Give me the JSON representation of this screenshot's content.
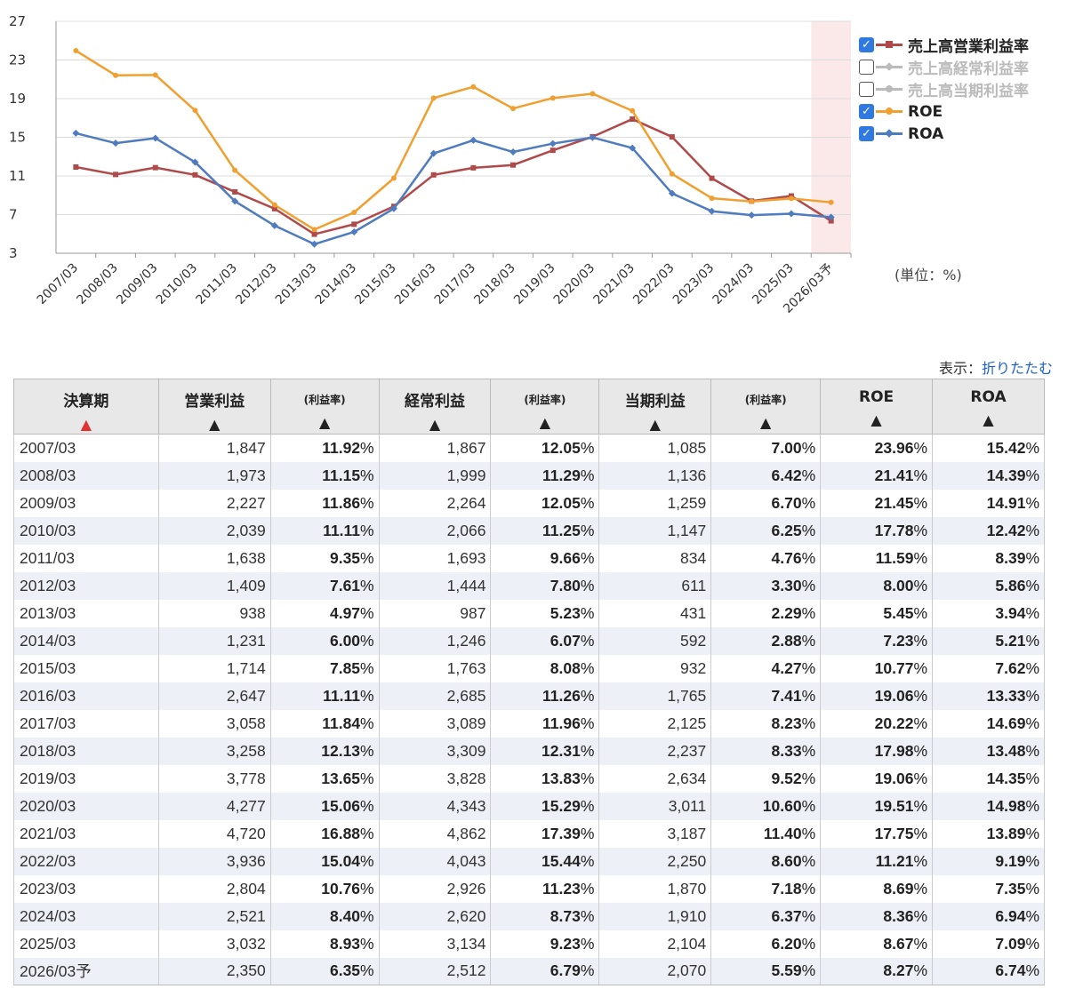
{
  "chart_data": {
    "type": "line",
    "categories": [
      "2007/03",
      "2008/03",
      "2009/03",
      "2010/03",
      "2011/03",
      "2012/03",
      "2013/03",
      "2014/03",
      "2015/03",
      "2016/03",
      "2017/03",
      "2018/03",
      "2019/03",
      "2020/03",
      "2021/03",
      "2022/03",
      "2023/03",
      "2024/03",
      "2025/03",
      "2026/03予"
    ],
    "ylim": [
      3,
      27
    ],
    "yticks": [
      3,
      7,
      11,
      15,
      19,
      23,
      27
    ],
    "forecast_band": "2026/03予",
    "series": [
      {
        "name": "売上高営業利益率",
        "color": "#b04a4a",
        "marker": "square",
        "visible": true,
        "values": [
          11.92,
          11.15,
          11.86,
          11.11,
          9.35,
          7.61,
          4.97,
          6.0,
          7.85,
          11.11,
          11.84,
          12.13,
          13.65,
          15.06,
          16.88,
          15.04,
          10.76,
          8.4,
          8.93,
          6.35
        ]
      },
      {
        "name": "売上高経常利益率",
        "color": "#bbbbbb",
        "marker": "diamond",
        "visible": false,
        "values": [
          12.05,
          11.29,
          12.05,
          11.25,
          9.66,
          7.8,
          5.23,
          6.07,
          8.08,
          11.26,
          11.96,
          12.31,
          13.83,
          15.29,
          17.39,
          15.44,
          11.23,
          8.73,
          9.23,
          6.79
        ]
      },
      {
        "name": "売上高当期利益率",
        "color": "#bbbbbb",
        "marker": "circle",
        "visible": false,
        "values": [
          7.0,
          6.42,
          6.7,
          6.25,
          4.76,
          3.3,
          2.29,
          2.88,
          4.27,
          7.41,
          8.23,
          8.33,
          9.52,
          10.6,
          11.4,
          8.6,
          7.18,
          6.37,
          6.2,
          5.59
        ]
      },
      {
        "name": "ROE",
        "color": "#f0a030",
        "marker": "circle",
        "visible": true,
        "values": [
          23.96,
          21.41,
          21.45,
          17.78,
          11.59,
          8.0,
          5.45,
          7.23,
          10.77,
          19.06,
          20.22,
          17.98,
          19.06,
          19.51,
          17.75,
          11.21,
          8.69,
          8.36,
          8.67,
          8.27
        ]
      },
      {
        "name": "ROA",
        "color": "#4f7bbf",
        "marker": "diamond",
        "visible": true,
        "values": [
          15.42,
          14.39,
          14.91,
          12.42,
          8.39,
          5.86,
          3.94,
          5.21,
          7.62,
          13.33,
          14.69,
          13.48,
          14.35,
          14.98,
          13.89,
          9.19,
          7.35,
          6.94,
          7.09,
          6.74
        ]
      }
    ]
  },
  "unit_label": "(単位：%)",
  "display": {
    "label": "表示：",
    "link": "折りたたむ"
  },
  "table": {
    "headers": {
      "period": "決算期",
      "op_profit": "営業利益",
      "op_margin": "(利益率)",
      "ord_profit": "経常利益",
      "ord_margin": "(利益率)",
      "net_profit": "当期利益",
      "net_margin": "(利益率)",
      "roe": "ROE",
      "roa": "ROA"
    },
    "pct": "%",
    "rows": [
      {
        "period": "2007/03",
        "op": "1,847",
        "opm": "11.92",
        "ord": "1,867",
        "ordm": "12.05",
        "net": "1,085",
        "netm": "7.00",
        "roe": "23.96",
        "roa": "15.42"
      },
      {
        "period": "2008/03",
        "op": "1,973",
        "opm": "11.15",
        "ord": "1,999",
        "ordm": "11.29",
        "net": "1,136",
        "netm": "6.42",
        "roe": "21.41",
        "roa": "14.39"
      },
      {
        "period": "2009/03",
        "op": "2,227",
        "opm": "11.86",
        "ord": "2,264",
        "ordm": "12.05",
        "net": "1,259",
        "netm": "6.70",
        "roe": "21.45",
        "roa": "14.91"
      },
      {
        "period": "2010/03",
        "op": "2,039",
        "opm": "11.11",
        "ord": "2,066",
        "ordm": "11.25",
        "net": "1,147",
        "netm": "6.25",
        "roe": "17.78",
        "roa": "12.42"
      },
      {
        "period": "2011/03",
        "op": "1,638",
        "opm": "9.35",
        "ord": "1,693",
        "ordm": "9.66",
        "net": "834",
        "netm": "4.76",
        "roe": "11.59",
        "roa": "8.39"
      },
      {
        "period": "2012/03",
        "op": "1,409",
        "opm": "7.61",
        "ord": "1,444",
        "ordm": "7.80",
        "net": "611",
        "netm": "3.30",
        "roe": "8.00",
        "roa": "5.86"
      },
      {
        "period": "2013/03",
        "op": "938",
        "opm": "4.97",
        "ord": "987",
        "ordm": "5.23",
        "net": "431",
        "netm": "2.29",
        "roe": "5.45",
        "roa": "3.94"
      },
      {
        "period": "2014/03",
        "op": "1,231",
        "opm": "6.00",
        "ord": "1,246",
        "ordm": "6.07",
        "net": "592",
        "netm": "2.88",
        "roe": "7.23",
        "roa": "5.21"
      },
      {
        "period": "2015/03",
        "op": "1,714",
        "opm": "7.85",
        "ord": "1,763",
        "ordm": "8.08",
        "net": "932",
        "netm": "4.27",
        "roe": "10.77",
        "roa": "7.62"
      },
      {
        "period": "2016/03",
        "op": "2,647",
        "opm": "11.11",
        "ord": "2,685",
        "ordm": "11.26",
        "net": "1,765",
        "netm": "7.41",
        "roe": "19.06",
        "roa": "13.33"
      },
      {
        "period": "2017/03",
        "op": "3,058",
        "opm": "11.84",
        "ord": "3,089",
        "ordm": "11.96",
        "net": "2,125",
        "netm": "8.23",
        "roe": "20.22",
        "roa": "14.69"
      },
      {
        "period": "2018/03",
        "op": "3,258",
        "opm": "12.13",
        "ord": "3,309",
        "ordm": "12.31",
        "net": "2,237",
        "netm": "8.33",
        "roe": "17.98",
        "roa": "13.48"
      },
      {
        "period": "2019/03",
        "op": "3,778",
        "opm": "13.65",
        "ord": "3,828",
        "ordm": "13.83",
        "net": "2,634",
        "netm": "9.52",
        "roe": "19.06",
        "roa": "14.35"
      },
      {
        "period": "2020/03",
        "op": "4,277",
        "opm": "15.06",
        "ord": "4,343",
        "ordm": "15.29",
        "net": "3,011",
        "netm": "10.60",
        "roe": "19.51",
        "roa": "14.98"
      },
      {
        "period": "2021/03",
        "op": "4,720",
        "opm": "16.88",
        "ord": "4,862",
        "ordm": "17.39",
        "net": "3,187",
        "netm": "11.40",
        "roe": "17.75",
        "roa": "13.89"
      },
      {
        "period": "2022/03",
        "op": "3,936",
        "opm": "15.04",
        "ord": "4,043",
        "ordm": "15.44",
        "net": "2,250",
        "netm": "8.60",
        "roe": "11.21",
        "roa": "9.19"
      },
      {
        "period": "2023/03",
        "op": "2,804",
        "opm": "10.76",
        "ord": "2,926",
        "ordm": "11.23",
        "net": "1,870",
        "netm": "7.18",
        "roe": "8.69",
        "roa": "7.35"
      },
      {
        "period": "2024/03",
        "op": "2,521",
        "opm": "8.40",
        "ord": "2,620",
        "ordm": "8.73",
        "net": "1,910",
        "netm": "6.37",
        "roe": "8.36",
        "roa": "6.94"
      },
      {
        "period": "2025/03",
        "op": "3,032",
        "opm": "8.93",
        "ord": "3,134",
        "ordm": "9.23",
        "net": "2,104",
        "netm": "6.20",
        "roe": "8.67",
        "roa": "7.09"
      },
      {
        "period": "2026/03予",
        "op": "2,350",
        "opm": "6.35",
        "ord": "2,512",
        "ordm": "6.79",
        "net": "2,070",
        "netm": "5.59",
        "roe": "8.27",
        "roa": "6.74"
      }
    ]
  }
}
